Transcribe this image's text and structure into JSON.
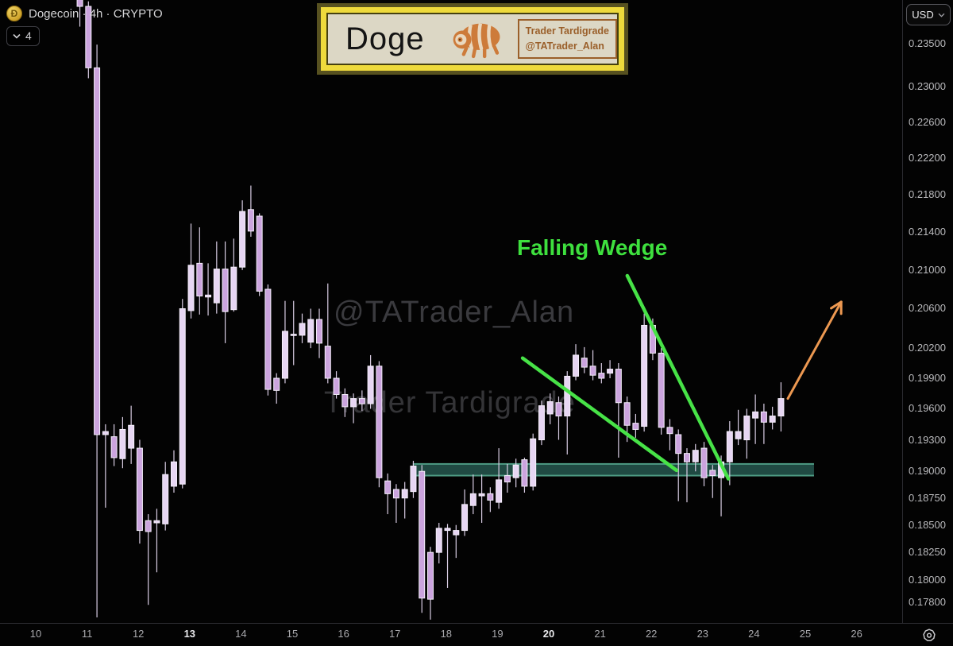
{
  "header": {
    "symbol_title": "Dogecoin · 4h · CRYPTO",
    "interval_chip": "4",
    "currency": "USD",
    "plaque": {
      "title": "Doge",
      "brand_name": "Trader Tardigrade",
      "brand_handle": "@TATrader_Alan"
    }
  },
  "watermarks": {
    "handle": "@TATrader_Alan",
    "brand": "Trader Tardigrade"
  },
  "annotations": {
    "pattern_label": "Falling Wedge",
    "wedge_lines": [
      {
        "day1": 21.53,
        "price1": 0.2094,
        "day2": 23.5,
        "price2": 0.1893
      },
      {
        "day1": 19.49,
        "price1": 0.201,
        "day2": 22.49,
        "price2": 0.1901
      }
    ],
    "arrow": {
      "day1": 24.66,
      "price1": 0.197,
      "day2": 25.7,
      "price2": 0.2067
    },
    "support_zone": {
      "day_start": 17.35,
      "day_end": 25.17,
      "price_top": 0.1907,
      "price_bottom": 0.1896
    }
  },
  "chart_data": {
    "type": "candlestick",
    "title": "Dogecoin · 4h · CRYPTO",
    "currency": "USD",
    "timeframe": "4h",
    "scale": "log",
    "price_axis_labels": [
      "0.23500",
      "0.23000",
      "0.22600",
      "0.22200",
      "0.21800",
      "0.21400",
      "0.21000",
      "0.20600",
      "0.20200",
      "0.19900",
      "0.19600",
      "0.19300",
      "0.19000",
      "0.18750",
      "0.18500",
      "0.18250",
      "0.18000",
      "0.17800"
    ],
    "time_axis": {
      "days": [
        10,
        11,
        12,
        13,
        14,
        15,
        16,
        17,
        18,
        19,
        20,
        21,
        22,
        23,
        24,
        25,
        26
      ],
      "bold_days": [
        13,
        20
      ]
    },
    "start_day": 10.86,
    "candles_per_day": 6,
    "price_range": {
      "high": 0.2403,
      "low": 0.1765
    },
    "candles": [
      [
        0.2402,
        0.2403,
        0.237,
        0.2394
      ],
      [
        0.2394,
        0.24,
        0.231,
        0.2322
      ],
      [
        0.2322,
        0.2349,
        0.1767,
        0.1935
      ],
      [
        0.1935,
        0.1945,
        0.1866,
        0.1938
      ],
      [
        0.1933,
        0.1945,
        0.1905,
        0.1913
      ],
      [
        0.1912,
        0.1952,
        0.1903,
        0.194
      ],
      [
        0.1922,
        0.1963,
        0.1907,
        0.1944
      ],
      [
        0.1922,
        0.193,
        0.1833,
        0.1845
      ],
      [
        0.1854,
        0.186,
        0.1778,
        0.1844
      ],
      [
        0.1852,
        0.1865,
        0.1807,
        0.1854
      ],
      [
        0.1851,
        0.1909,
        0.1845,
        0.1897
      ],
      [
        0.1886,
        0.192,
        0.188,
        0.1909
      ],
      [
        0.1888,
        0.207,
        0.1884,
        0.206
      ],
      [
        0.2058,
        0.2149,
        0.205,
        0.2105
      ],
      [
        0.2107,
        0.2145,
        0.2054,
        0.2073
      ],
      [
        0.2072,
        0.2107,
        0.2053,
        0.2074
      ],
      [
        0.2066,
        0.213,
        0.2055,
        0.2101
      ],
      [
        0.2101,
        0.213,
        0.2025,
        0.2057
      ],
      [
        0.2059,
        0.2133,
        0.2057,
        0.2103
      ],
      [
        0.2103,
        0.2174,
        0.21,
        0.2162
      ],
      [
        0.2164,
        0.219,
        0.2135,
        0.2141
      ],
      [
        0.2157,
        0.216,
        0.2073,
        0.2078
      ],
      [
        0.208,
        0.2085,
        0.1973,
        0.1979
      ],
      [
        0.199,
        0.1995,
        0.1965,
        0.1978
      ],
      [
        0.199,
        0.2068,
        0.1985,
        0.2037
      ],
      [
        0.2034,
        0.2068,
        0.2003,
        0.2034
      ],
      [
        0.2033,
        0.2055,
        0.2025,
        0.2045
      ],
      [
        0.2026,
        0.206,
        0.202,
        0.2049
      ],
      [
        0.2049,
        0.206,
        0.201,
        0.2025
      ],
      [
        0.2022,
        0.2086,
        0.1985,
        0.199
      ],
      [
        0.199,
        0.1997,
        0.197,
        0.1974
      ],
      [
        0.1974,
        0.198,
        0.1952,
        0.1962
      ],
      [
        0.1962,
        0.1975,
        0.1946,
        0.197
      ],
      [
        0.197,
        0.1978,
        0.1958,
        0.1965
      ],
      [
        0.1965,
        0.2013,
        0.196,
        0.2002
      ],
      [
        0.2002,
        0.2007,
        0.1885,
        0.1894
      ],
      [
        0.1891,
        0.1898,
        0.186,
        0.1879
      ],
      [
        0.1883,
        0.1888,
        0.1852,
        0.1875
      ],
      [
        0.1875,
        0.189,
        0.1856,
        0.1883
      ],
      [
        0.1881,
        0.191,
        0.1875,
        0.1905
      ],
      [
        0.19,
        0.1906,
        0.1771,
        0.1784
      ],
      [
        0.1825,
        0.183,
        0.1765,
        0.1783
      ],
      [
        0.1825,
        0.1852,
        0.1815,
        0.1847
      ],
      [
        0.1845,
        0.1851,
        0.1793,
        0.1847
      ],
      [
        0.1841,
        0.185,
        0.182,
        0.1845
      ],
      [
        0.1845,
        0.1883,
        0.184,
        0.1869
      ],
      [
        0.1868,
        0.1897,
        0.186,
        0.1879
      ],
      [
        0.1877,
        0.1897,
        0.1852,
        0.1879
      ],
      [
        0.1879,
        0.1885,
        0.1862,
        0.1873
      ],
      [
        0.1871,
        0.1922,
        0.1865,
        0.1892
      ],
      [
        0.1896,
        0.1907,
        0.188,
        0.189
      ],
      [
        0.1894,
        0.1912,
        0.1885,
        0.1906
      ],
      [
        0.1911,
        0.1913,
        0.188,
        0.1886
      ],
      [
        0.1886,
        0.1936,
        0.1882,
        0.1931
      ],
      [
        0.193,
        0.1968,
        0.1925,
        0.1963
      ],
      [
        0.1955,
        0.1975,
        0.1945,
        0.1967
      ],
      [
        0.1966,
        0.1972,
        0.193,
        0.1953
      ],
      [
        0.1953,
        0.1997,
        0.1916,
        0.1992
      ],
      [
        0.1992,
        0.2024,
        0.1988,
        0.2013
      ],
      [
        0.201,
        0.2021,
        0.1995,
        0.2001
      ],
      [
        0.2002,
        0.2018,
        0.1988,
        0.1993
      ],
      [
        0.1995,
        0.2005,
        0.1985,
        0.199
      ],
      [
        0.1995,
        0.2008,
        0.199,
        0.1999
      ],
      [
        0.1999,
        0.2005,
        0.1913,
        0.1966
      ],
      [
        0.1966,
        0.1972,
        0.1928,
        0.1944
      ],
      [
        0.1946,
        0.1955,
        0.1932,
        0.194
      ],
      [
        0.1943,
        0.2055,
        0.1938,
        0.2043
      ],
      [
        0.2043,
        0.205,
        0.2008,
        0.2015
      ],
      [
        0.2015,
        0.202,
        0.1935,
        0.1942
      ],
      [
        0.1942,
        0.195,
        0.192,
        0.1936
      ],
      [
        0.1935,
        0.194,
        0.1872,
        0.1917
      ],
      [
        0.1917,
        0.1922,
        0.1871,
        0.1909
      ],
      [
        0.1909,
        0.1926,
        0.19,
        0.192
      ],
      [
        0.1922,
        0.1928,
        0.1886,
        0.1894
      ],
      [
        0.1901,
        0.1906,
        0.1875,
        0.1896
      ],
      [
        0.1894,
        0.1915,
        0.1858,
        0.1909
      ],
      [
        0.1909,
        0.1948,
        0.1887,
        0.1938
      ],
      [
        0.1931,
        0.1959,
        0.1925,
        0.1938
      ],
      [
        0.193,
        0.196,
        0.1912,
        0.1953
      ],
      [
        0.1951,
        0.1974,
        0.1926,
        0.1957
      ],
      [
        0.1957,
        0.1965,
        0.1926,
        0.1947
      ],
      [
        0.1947,
        0.1962,
        0.194,
        0.1953
      ],
      [
        0.1953,
        0.1986,
        0.1938,
        0.197
      ]
    ],
    "colors": {
      "up_body": "#e7d6f3",
      "down_body": "#cba4de",
      "body_border": "#f4eefa",
      "wick": "#d9cde4",
      "zone_fill": "#24524a",
      "zone_edge": "#4e9b84",
      "trendline": "#47e247",
      "arrow": "#ec9851",
      "pattern_text": "#3ee03e"
    }
  }
}
